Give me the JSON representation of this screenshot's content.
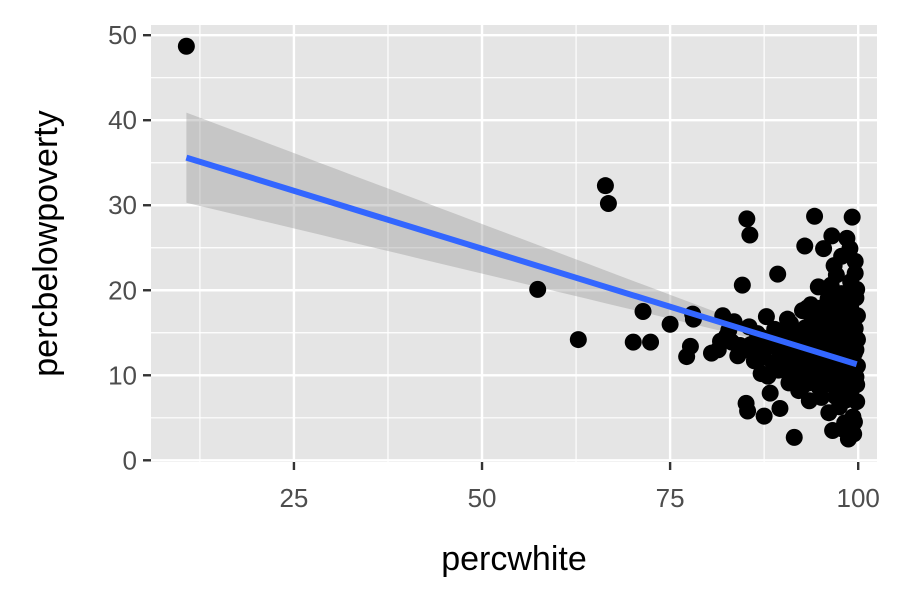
{
  "chart_data": {
    "type": "scatter",
    "xlabel": "percwhite",
    "ylabel": "percbelowpoverty",
    "xlim": [
      6,
      102.5
    ],
    "ylim": [
      -0.2,
      51.2
    ],
    "xticks": [
      25,
      50,
      75,
      100
    ],
    "xticks_minor": [
      12.5,
      37.5,
      62.5,
      87.5
    ],
    "yticks": [
      0,
      10,
      20,
      30,
      40,
      50
    ],
    "yticks_minor": [
      5,
      15,
      25,
      35,
      45
    ],
    "grid": true,
    "point_color": "#000000",
    "fit": {
      "method": "linear",
      "color": "#3366ff",
      "band_color": "#999999",
      "x": [
        10.7,
        99.8
      ],
      "y": [
        35.6,
        11.3
      ],
      "band_lower": [
        30.3,
        10.1
      ],
      "band_upper": [
        40.9,
        12.5
      ],
      "band_min_x": 90,
      "band_min_half_width": 0.5
    },
    "points": [
      [
        10.7,
        48.7
      ],
      [
        57.4,
        20.1
      ],
      [
        62.8,
        14.2
      ],
      [
        66.4,
        32.3
      ],
      [
        66.8,
        30.2
      ],
      [
        70.1,
        13.9
      ],
      [
        71.4,
        17.5
      ],
      [
        72.4,
        13.9
      ],
      [
        75.0,
        16.0
      ],
      [
        77.2,
        12.2
      ],
      [
        77.7,
        13.4
      ],
      [
        78.1,
        16.6
      ],
      [
        78.0,
        17.2
      ],
      [
        80.5,
        12.6
      ],
      [
        81.4,
        13.0
      ],
      [
        82.0,
        17.0
      ],
      [
        82.8,
        15.3
      ],
      [
        83.2,
        13.9
      ],
      [
        84.0,
        12.3
      ],
      [
        84.6,
        20.6
      ],
      [
        85.2,
        28.4
      ],
      [
        85.6,
        26.5
      ],
      [
        85.1,
        6.7
      ],
      [
        85.3,
        5.8
      ],
      [
        85.7,
        13.6
      ],
      [
        86.6,
        14.9
      ],
      [
        87.1,
        10.2
      ],
      [
        87.4,
        12.1
      ],
      [
        87.5,
        5.2
      ],
      [
        87.8,
        16.9
      ],
      [
        88.3,
        7.9
      ],
      [
        88.7,
        11.4
      ],
      [
        89.0,
        13.3
      ],
      [
        89.3,
        21.9
      ],
      [
        89.6,
        6.1
      ],
      [
        90.0,
        15.0
      ],
      [
        90.3,
        13.8
      ],
      [
        90.6,
        16.6
      ],
      [
        90.9,
        9.4
      ],
      [
        91.2,
        12.6
      ],
      [
        91.5,
        2.7
      ],
      [
        91.8,
        14.5
      ],
      [
        92.1,
        8.2
      ],
      [
        92.4,
        11.9
      ],
      [
        92.6,
        17.6
      ],
      [
        92.9,
        25.2
      ],
      [
        93.1,
        10.8
      ],
      [
        93.3,
        14.0
      ],
      [
        93.5,
        7.0
      ],
      [
        93.7,
        18.3
      ],
      [
        94.0,
        12.3
      ],
      [
        94.2,
        28.7
      ],
      [
        94.4,
        9.6
      ],
      [
        94.5,
        15.8
      ],
      [
        94.7,
        20.4
      ],
      [
        94.9,
        11.5
      ],
      [
        95.1,
        7.4
      ],
      [
        95.2,
        13.6
      ],
      [
        95.4,
        24.9
      ],
      [
        95.6,
        16.4
      ],
      [
        95.8,
        10.1
      ],
      [
        96.0,
        19.0
      ],
      [
        96.1,
        5.6
      ],
      [
        96.3,
        12.9
      ],
      [
        96.5,
        26.4
      ],
      [
        96.6,
        3.5
      ],
      [
        96.8,
        15.1
      ],
      [
        96.9,
        8.7
      ],
      [
        97.1,
        21.8
      ],
      [
        97.2,
        11.0
      ],
      [
        97.4,
        17.3
      ],
      [
        97.5,
        6.3
      ],
      [
        97.7,
        13.3
      ],
      [
        97.8,
        24.0
      ],
      [
        98.0,
        9.2
      ],
      [
        98.1,
        16.0
      ],
      [
        98.2,
        4.4
      ],
      [
        98.4,
        12.1
      ],
      [
        98.5,
        26.1
      ],
      [
        98.6,
        18.6
      ],
      [
        98.8,
        7.8
      ],
      [
        98.9,
        14.7
      ],
      [
        99.0,
        21.0
      ],
      [
        99.1,
        10.5
      ],
      [
        99.2,
        28.6
      ],
      [
        99.3,
        5.1
      ],
      [
        99.4,
        16.9
      ],
      [
        99.5,
        12.6
      ],
      [
        99.6,
        23.4
      ],
      [
        99.7,
        9.8
      ],
      [
        99.7,
        19.1
      ],
      [
        99.8,
        6.9
      ],
      [
        99.9,
        14.2
      ],
      [
        99.4,
        3.1
      ],
      [
        98.7,
        2.5
      ],
      [
        97.9,
        3.7
      ],
      [
        96.4,
        20.6
      ],
      [
        95.3,
        14.9
      ],
      [
        94.1,
        17.1
      ],
      [
        93.8,
        13.1
      ],
      [
        93.0,
        15.6
      ],
      [
        92.2,
        10.3
      ],
      [
        91.0,
        16.1
      ],
      [
        90.5,
        11.2
      ],
      [
        89.8,
        12.8
      ],
      [
        88.9,
        15.4
      ],
      [
        88.0,
        9.9
      ],
      [
        86.9,
        13.0
      ],
      [
        86.2,
        11.7
      ],
      [
        85.5,
        15.7
      ],
      [
        84.3,
        13.5
      ],
      [
        83.5,
        16.3
      ],
      [
        82.5,
        14.6
      ],
      [
        81.7,
        14.0
      ],
      [
        95.0,
        11.0
      ],
      [
        96.2,
        9.0
      ],
      [
        97.3,
        14.4
      ],
      [
        98.3,
        11.7
      ],
      [
        99.1,
        8.3
      ],
      [
        99.6,
        15.5
      ],
      [
        99.9,
        11.1
      ],
      [
        98.6,
        17.6
      ],
      [
        97.6,
        10.4
      ],
      [
        96.7,
        12.4
      ],
      [
        95.7,
        13.9
      ],
      [
        94.8,
        8.6
      ],
      [
        93.9,
        16.7
      ],
      [
        92.8,
        11.6
      ],
      [
        91.6,
        13.6
      ],
      [
        90.8,
        9.1
      ],
      [
        89.4,
        10.6
      ],
      [
        88.4,
        13.8
      ],
      [
        87.3,
        14.4
      ],
      [
        86.0,
        12.6
      ],
      [
        97.0,
        16.5
      ],
      [
        98.0,
        13.1
      ],
      [
        99.0,
        18.0
      ],
      [
        99.8,
        20.1
      ],
      [
        99.3,
        12.0
      ],
      [
        98.4,
        7.1
      ],
      [
        97.5,
        8.0
      ],
      [
        96.6,
        18.1
      ],
      [
        95.5,
        12.1
      ],
      [
        94.6,
        14.3
      ],
      [
        93.4,
        9.1
      ],
      [
        92.3,
        14.9
      ],
      [
        91.3,
        12.0
      ],
      [
        99.5,
        4.5
      ],
      [
        98.9,
        24.9
      ],
      [
        97.8,
        19.6
      ],
      [
        96.0,
        15.4
      ],
      [
        94.3,
        10.7
      ],
      [
        99.7,
        13.0
      ],
      [
        99.2,
        16.0
      ],
      [
        98.8,
        9.6
      ],
      [
        97.2,
        13.8
      ],
      [
        96.9,
        11.4
      ],
      [
        95.9,
        16.9
      ],
      [
        95.2,
        9.8
      ],
      [
        93.6,
        12.0
      ],
      [
        92.0,
        13.3
      ],
      [
        99.9,
        17.0
      ],
      [
        99.4,
        9.3
      ],
      [
        98.2,
        15.0
      ],
      [
        97.0,
        7.5
      ],
      [
        96.3,
        13.7
      ],
      [
        95.0,
        17.9
      ],
      [
        94.0,
        13.7
      ],
      [
        92.7,
        8.8
      ],
      [
        91.4,
        15.4
      ],
      [
        99.6,
        22.0
      ],
      [
        98.5,
        12.9
      ],
      [
        97.4,
        11.9
      ],
      [
        96.8,
        22.9
      ],
      [
        95.6,
        11.6
      ],
      [
        94.4,
        12.6
      ],
      [
        93.2,
        17.9
      ],
      [
        99.8,
        8.9
      ],
      [
        99.0,
        15.1
      ],
      [
        98.1,
        18.9
      ]
    ]
  }
}
